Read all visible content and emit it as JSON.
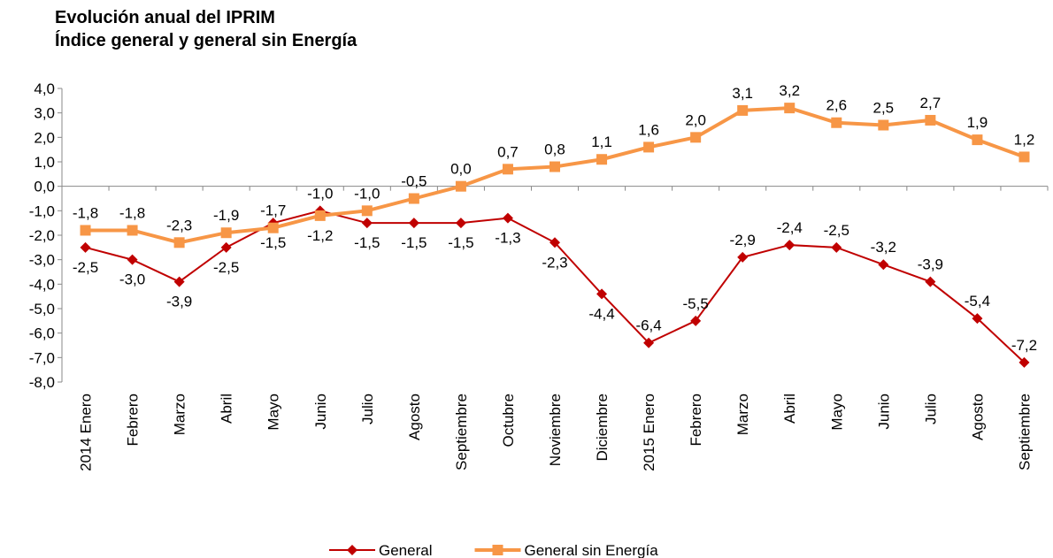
{
  "chart_data": {
    "type": "line",
    "title": "Evolución anual del IPRIM",
    "subtitle": "Índice general y general sin Energía",
    "categories": [
      "2014 Enero",
      "Febrero",
      "Marzo",
      "Abril",
      "Mayo",
      "Junio",
      "Julio",
      "Agosto",
      "Septiembre",
      "Octubre",
      "Noviembre",
      "Diciembre",
      "2015 Enero",
      "Febrero",
      "Marzo",
      "Abril",
      "Mayo",
      "Junio",
      "Julio",
      "Agosto",
      "Septiembre"
    ],
    "series": [
      {
        "name": "General",
        "color": "#c00000",
        "marker": "diamond",
        "values": [
          -2.5,
          -3.0,
          -3.9,
          -2.5,
          -1.5,
          -1.0,
          -1.5,
          -1.5,
          -1.5,
          -1.3,
          -2.3,
          -4.4,
          -6.4,
          -5.5,
          -2.9,
          -2.4,
          -2.5,
          -3.2,
          -3.9,
          -5.4,
          -7.2
        ],
        "value_labels": [
          "-2,5",
          "-3,0",
          "-3,9",
          "-2,5",
          "-1,5",
          "-1,0",
          "-1,5",
          "-1,5",
          "-1,5",
          "-1,3",
          "-2,3",
          "-4,4",
          "-6,4",
          "-5,5",
          "-2,9",
          "-2,4",
          "-2,5",
          "-3,2",
          "-3,9",
          "-5,4",
          "-7,2"
        ]
      },
      {
        "name": "General sin Energía",
        "color": "#f79646",
        "marker": "square",
        "values": [
          -1.8,
          -1.8,
          -2.3,
          -1.9,
          -1.7,
          -1.2,
          -1.0,
          -0.5,
          0.0,
          0.7,
          0.8,
          1.1,
          1.6,
          2.0,
          3.1,
          3.2,
          2.6,
          2.5,
          2.7,
          1.9,
          1.2
        ],
        "value_labels": [
          "-1,8",
          "-1,8",
          "-2,3",
          "-1,9",
          "-1,7",
          "-1,2",
          "-1,0",
          "-0,5",
          "0,0",
          "0,7",
          "0,8",
          "1,1",
          "1,6",
          "2,0",
          "3,1",
          "3,2",
          "2,6",
          "2,5",
          "2,7",
          "1,9",
          "1,2"
        ]
      }
    ],
    "ylim": [
      -8,
      4
    ],
    "yticks": [
      {
        "value": 4,
        "label": "4,0"
      },
      {
        "value": 3,
        "label": "3,0"
      },
      {
        "value": 2,
        "label": "2,0"
      },
      {
        "value": 1,
        "label": "1,0"
      },
      {
        "value": 0,
        "label": "0,0"
      },
      {
        "value": -1,
        "label": "-1,0"
      },
      {
        "value": -2,
        "label": "-2,0"
      },
      {
        "value": -3,
        "label": "-3,0"
      },
      {
        "value": -4,
        "label": "-4,0"
      },
      {
        "value": -5,
        "label": "-5,0"
      },
      {
        "value": -6,
        "label": "-6,0"
      },
      {
        "value": -7,
        "label": "-7,0"
      },
      {
        "value": -8,
        "label": "-8,0"
      }
    ],
    "legend": "bottom"
  }
}
